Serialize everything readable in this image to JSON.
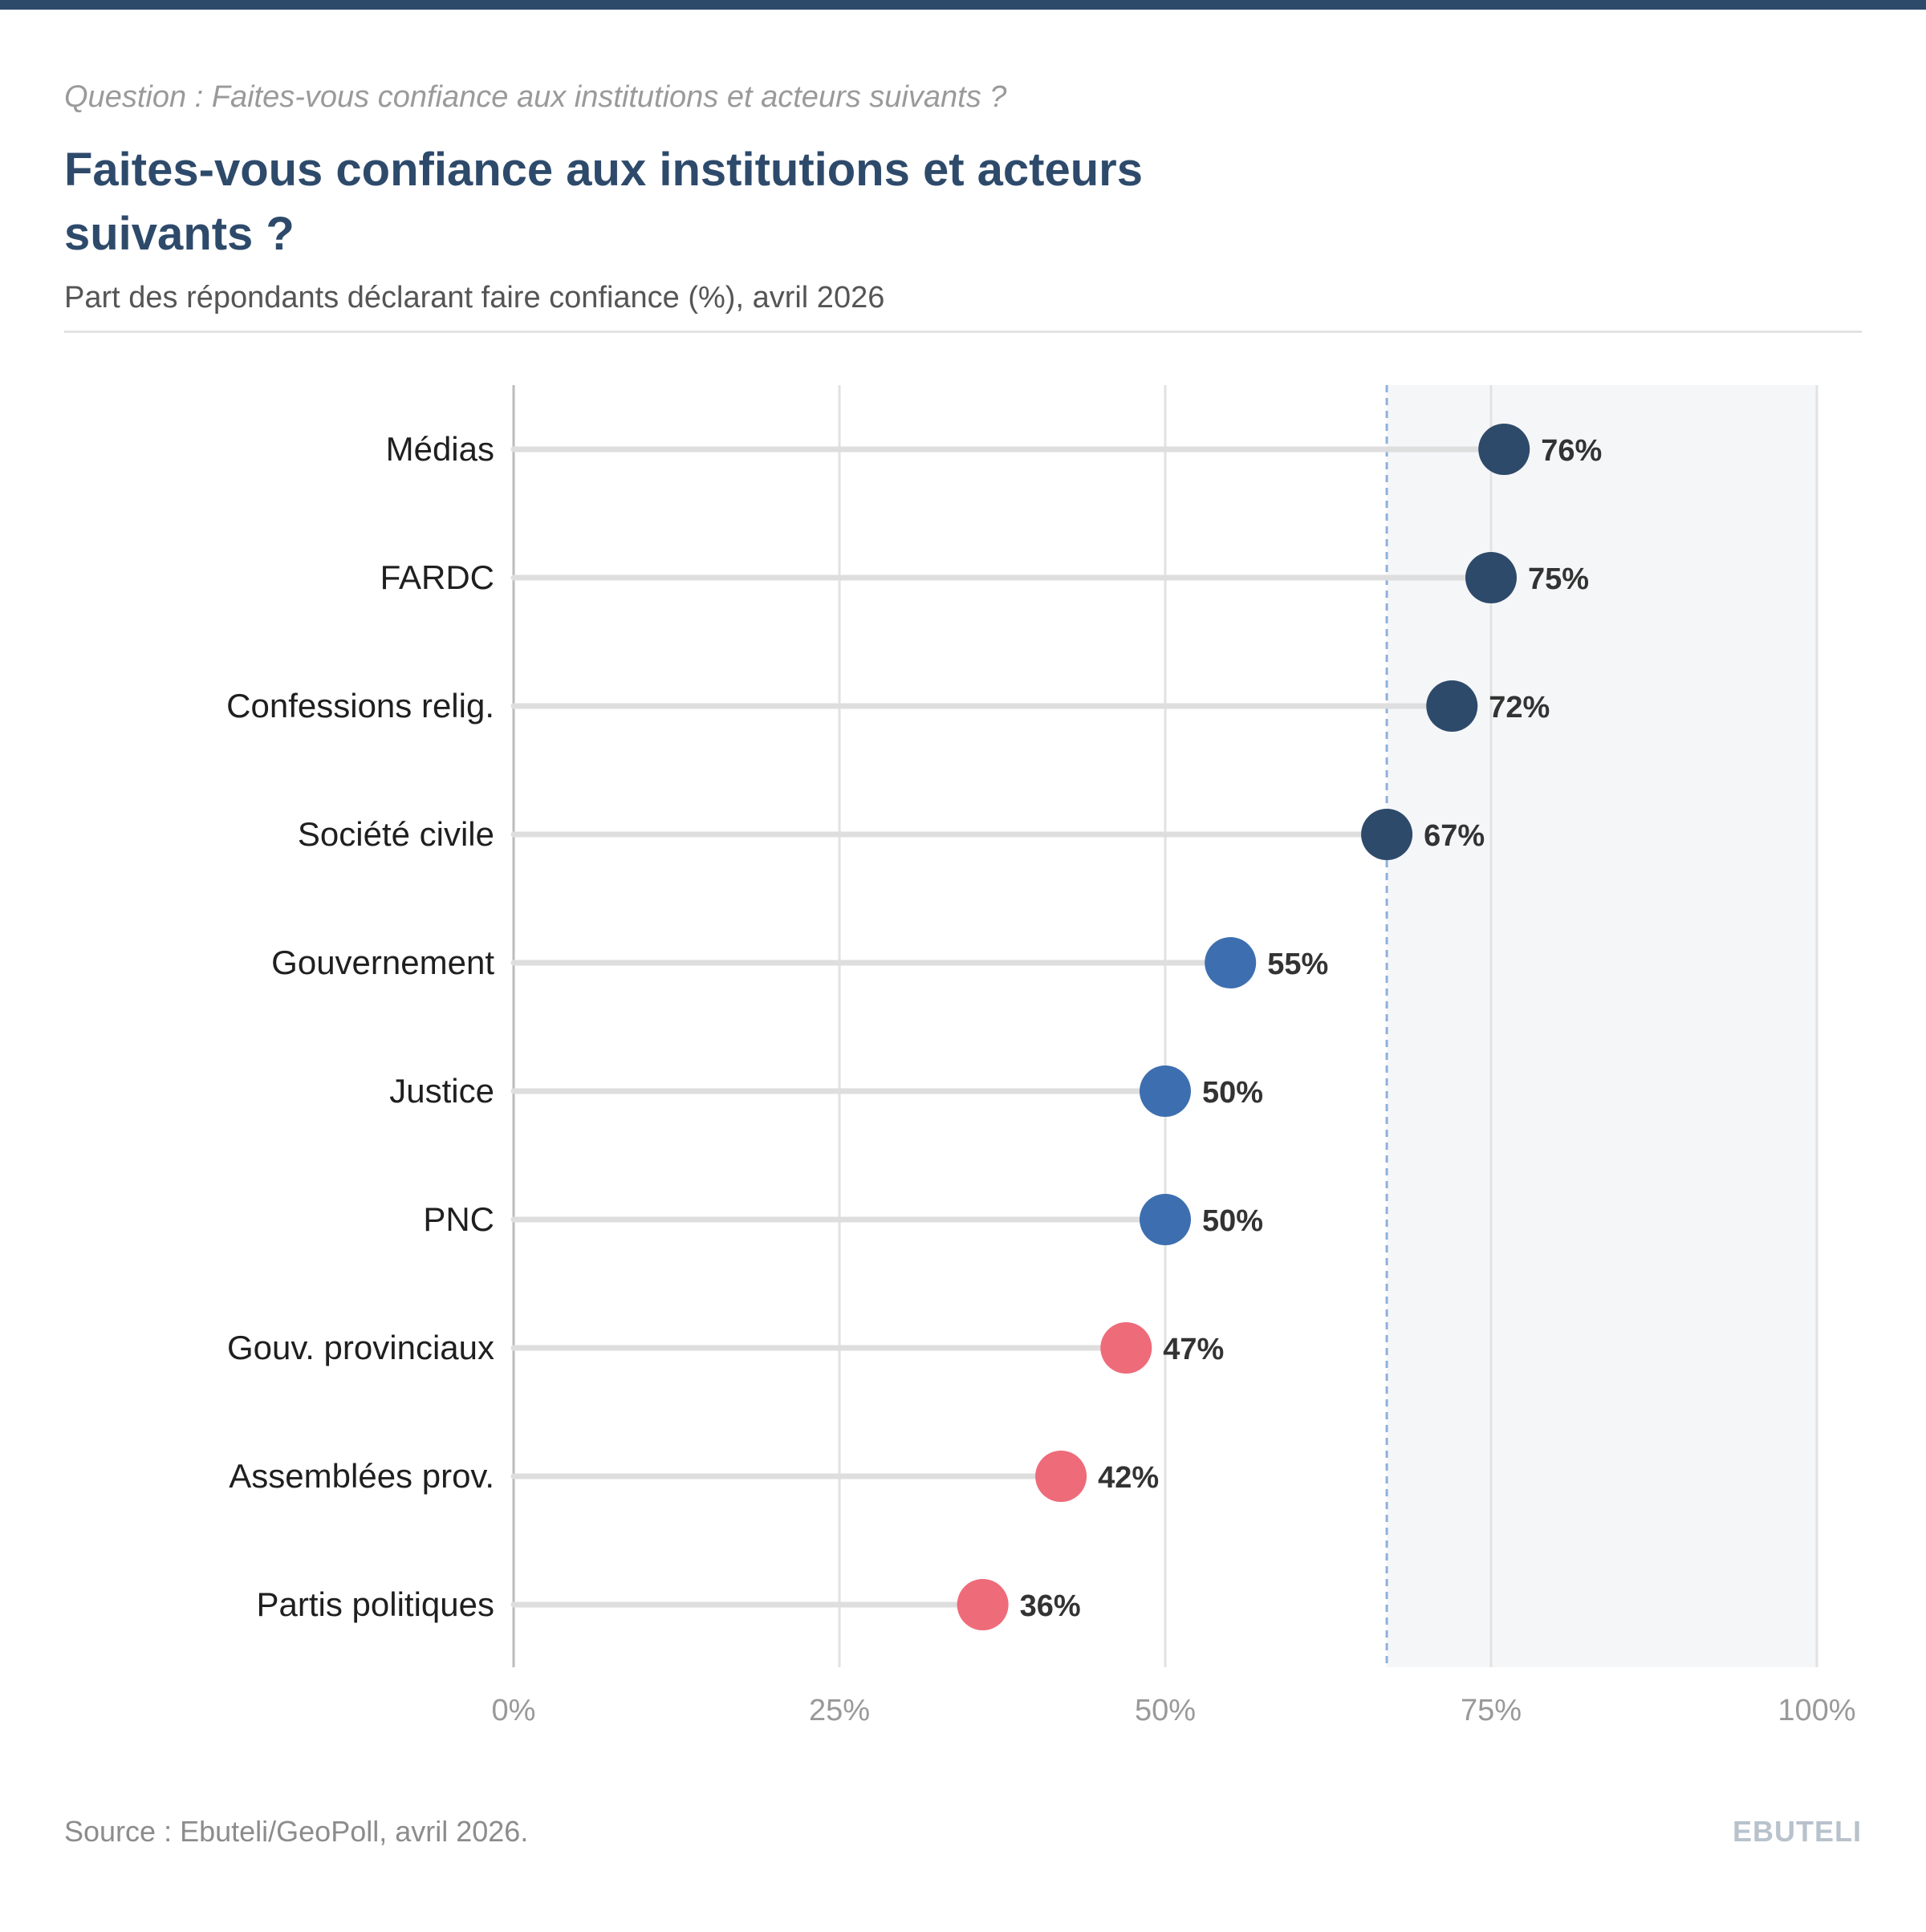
{
  "header": {
    "question": "Question : Faites-vous confiance aux institutions et acteurs suivants ?",
    "title": "Faites-vous confiance aux institutions et acteurs suivants ?",
    "subtitle": "Part des répondants déclarant faire confiance (%), avril 2026"
  },
  "footer": {
    "source": "Source : Ebuteli/GeoPoll, avril 2026.",
    "brand": "EBUTELI"
  },
  "colors": {
    "top_bar": "#2e4a6b",
    "title": "#2e4a6b",
    "high": "#2e4a6b",
    "mid": "#3d6fb0",
    "low": "#ee6b7a",
    "reference_line": "#8fb0d8",
    "shaded_region": "#f5f6f8",
    "stem": "#dedede",
    "grid": "#e2e2e2",
    "axis": "#bbbbbb"
  },
  "chart_data": {
    "type": "lollipop",
    "categories": [
      "Médias",
      "FARDC",
      "Confessions relig.",
      "Société civile",
      "Gouvernement",
      "Justice",
      "PNC",
      "Gouv. provinciaux",
      "Assemblées prov.",
      "Partis politiques"
    ],
    "values": [
      76,
      75,
      72,
      67,
      55,
      50,
      50,
      47,
      42,
      36
    ],
    "value_labels": [
      "76%",
      "75%",
      "72%",
      "67%",
      "55%",
      "50%",
      "50%",
      "47%",
      "42%",
      "36%"
    ],
    "point_groups": [
      "high",
      "high",
      "high",
      "high",
      "mid",
      "mid",
      "mid",
      "low",
      "low",
      "low"
    ],
    "xlim": [
      0,
      100
    ],
    "xticks": [
      0,
      25,
      50,
      75,
      100
    ],
    "xtick_labels": [
      "0%",
      "25%",
      "50%",
      "75%",
      "100%"
    ],
    "reference_value": 67,
    "shaded_region": [
      67,
      100
    ],
    "grid": true
  }
}
